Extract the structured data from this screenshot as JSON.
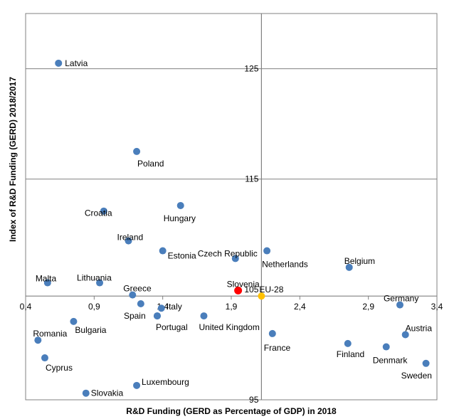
{
  "chart_data": {
    "type": "scatter",
    "xlabel": "R&D Funding  (GERD as Percentage of GDP) in 2018",
    "ylabel": "Index of R&D  Funding (GERD) 2018/2017",
    "xlim": [
      0.4,
      3.4
    ],
    "ylim": [
      95,
      130
    ],
    "x_ticks": [
      "0,4",
      "0,9",
      "1,4",
      "1,9",
      "2,4",
      "2,9",
      "3,4"
    ],
    "x_tick_values": [
      0.4,
      0.9,
      1.4,
      1.9,
      2.4,
      2.9,
      3.4
    ],
    "y_ticks": [
      "95",
      "105",
      "115",
      "125"
    ],
    "y_tick_values": [
      95,
      105,
      115,
      125
    ],
    "gridlines": [
      115,
      125
    ],
    "crosshair": {
      "x": 2.12,
      "y": 104.4
    },
    "colors": {
      "country": "#4a7ebb",
      "slovenia": "#ff0000",
      "eu": "#ffc000",
      "grid": "#808080"
    },
    "points": [
      {
        "label": "Latvia",
        "x": 0.64,
        "y": 125.5,
        "kind": "country"
      },
      {
        "label": "Poland",
        "x": 1.21,
        "y": 117.5,
        "kind": "country"
      },
      {
        "label": "Croatia",
        "x": 0.97,
        "y": 112.1,
        "kind": "country"
      },
      {
        "label": "Hungary",
        "x": 1.53,
        "y": 112.6,
        "kind": "country"
      },
      {
        "label": "Ireland",
        "x": 1.15,
        "y": 109.4,
        "kind": "country"
      },
      {
        "label": "Estonia",
        "x": 1.4,
        "y": 108.5,
        "kind": "country"
      },
      {
        "label": "Czech Republic",
        "x": 1.93,
        "y": 107.8,
        "kind": "country"
      },
      {
        "label": "Netherlands",
        "x": 2.16,
        "y": 108.5,
        "kind": "country"
      },
      {
        "label": "Belgium",
        "x": 2.76,
        "y": 107.0,
        "kind": "country"
      },
      {
        "label": "Malta",
        "x": 0.56,
        "y": 105.6,
        "kind": "country"
      },
      {
        "label": "Lithuania",
        "x": 0.94,
        "y": 105.6,
        "kind": "country"
      },
      {
        "label": "Greece",
        "x": 1.18,
        "y": 104.5,
        "kind": "country"
      },
      {
        "label": "Slovenia",
        "x": 1.95,
        "y": 104.9,
        "kind": "slovenia"
      },
      {
        "label": "Germany",
        "x": 3.13,
        "y": 103.6,
        "kind": "country"
      },
      {
        "label": "EU-28",
        "x": 2.12,
        "y": 104.4,
        "kind": "eu"
      },
      {
        "label": "",
        "x": 1.24,
        "y": 103.7,
        "kind": "country"
      },
      {
        "label": "Italy",
        "x": 1.39,
        "y": 103.3,
        "kind": "country"
      },
      {
        "label": "Spain",
        "x": 1.36,
        "y": 102.6,
        "kind": "country"
      },
      {
        "label": "Portugal",
        "x": 1.36,
        "y": 102.6,
        "kind": "country"
      },
      {
        "label": "United Kingdom",
        "x": 1.7,
        "y": 102.6,
        "kind": "country"
      },
      {
        "label": "Romania",
        "x": 0.49,
        "y": 100.4,
        "kind": "country"
      },
      {
        "label": "Bulgaria",
        "x": 0.75,
        "y": 102.1,
        "kind": "country"
      },
      {
        "label": "France",
        "x": 2.2,
        "y": 101.0,
        "kind": "country"
      },
      {
        "label": "Finland",
        "x": 2.75,
        "y": 100.1,
        "kind": "country"
      },
      {
        "label": "Denmark",
        "x": 3.03,
        "y": 99.8,
        "kind": "country"
      },
      {
        "label": "Austria",
        "x": 3.17,
        "y": 100.9,
        "kind": "country"
      },
      {
        "label": "Sweden",
        "x": 3.32,
        "y": 98.3,
        "kind": "country"
      },
      {
        "label": "Cyprus",
        "x": 0.54,
        "y": 98.8,
        "kind": "country"
      },
      {
        "label": "Luxembourg",
        "x": 1.21,
        "y": 96.3,
        "kind": "country"
      },
      {
        "label": "Slovakia",
        "x": 0.84,
        "y": 95.6,
        "kind": "country"
      }
    ]
  }
}
